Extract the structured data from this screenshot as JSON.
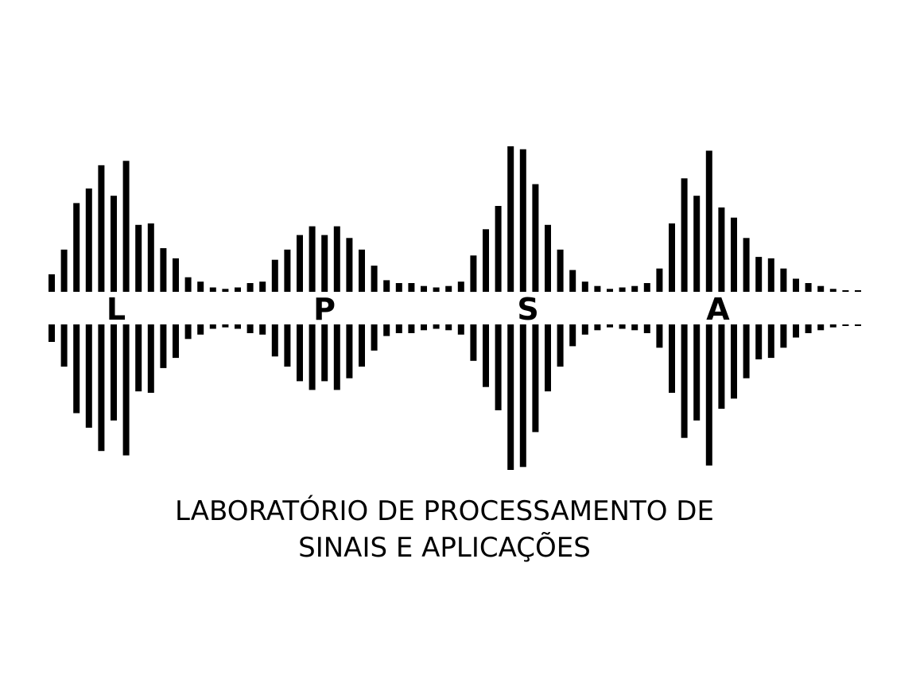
{
  "logo": {
    "letters": [
      "L",
      "P",
      "S",
      "A"
    ],
    "colors": {
      "ink": "#000000",
      "background": "#ffffff"
    },
    "waveform_levels": [
      0.12,
      0.29,
      0.61,
      0.71,
      0.87,
      0.66,
      0.9,
      0.46,
      0.47,
      0.3,
      0.23,
      0.1,
      0.07,
      0.03,
      0.02,
      0.03,
      0.06,
      0.07,
      0.22,
      0.29,
      0.39,
      0.45,
      0.39,
      0.45,
      0.37,
      0.29,
      0.18,
      0.08,
      0.06,
      0.06,
      0.04,
      0.03,
      0.04,
      0.07,
      0.25,
      0.43,
      0.59,
      1.0,
      0.98,
      0.74,
      0.46,
      0.29,
      0.15,
      0.07,
      0.04,
      0.02,
      0.03,
      0.04,
      0.06,
      0.16,
      0.47,
      0.78,
      0.66,
      0.97,
      0.58,
      0.51,
      0.37,
      0.24,
      0.23,
      0.16,
      0.09,
      0.06,
      0.04,
      0.02,
      0.01,
      0.01
    ]
  },
  "caption": {
    "line1": "LABORATÓRIO DE PROCESSAMENTO DE",
    "line2": "SINAIS E APLICAÇÕES"
  }
}
